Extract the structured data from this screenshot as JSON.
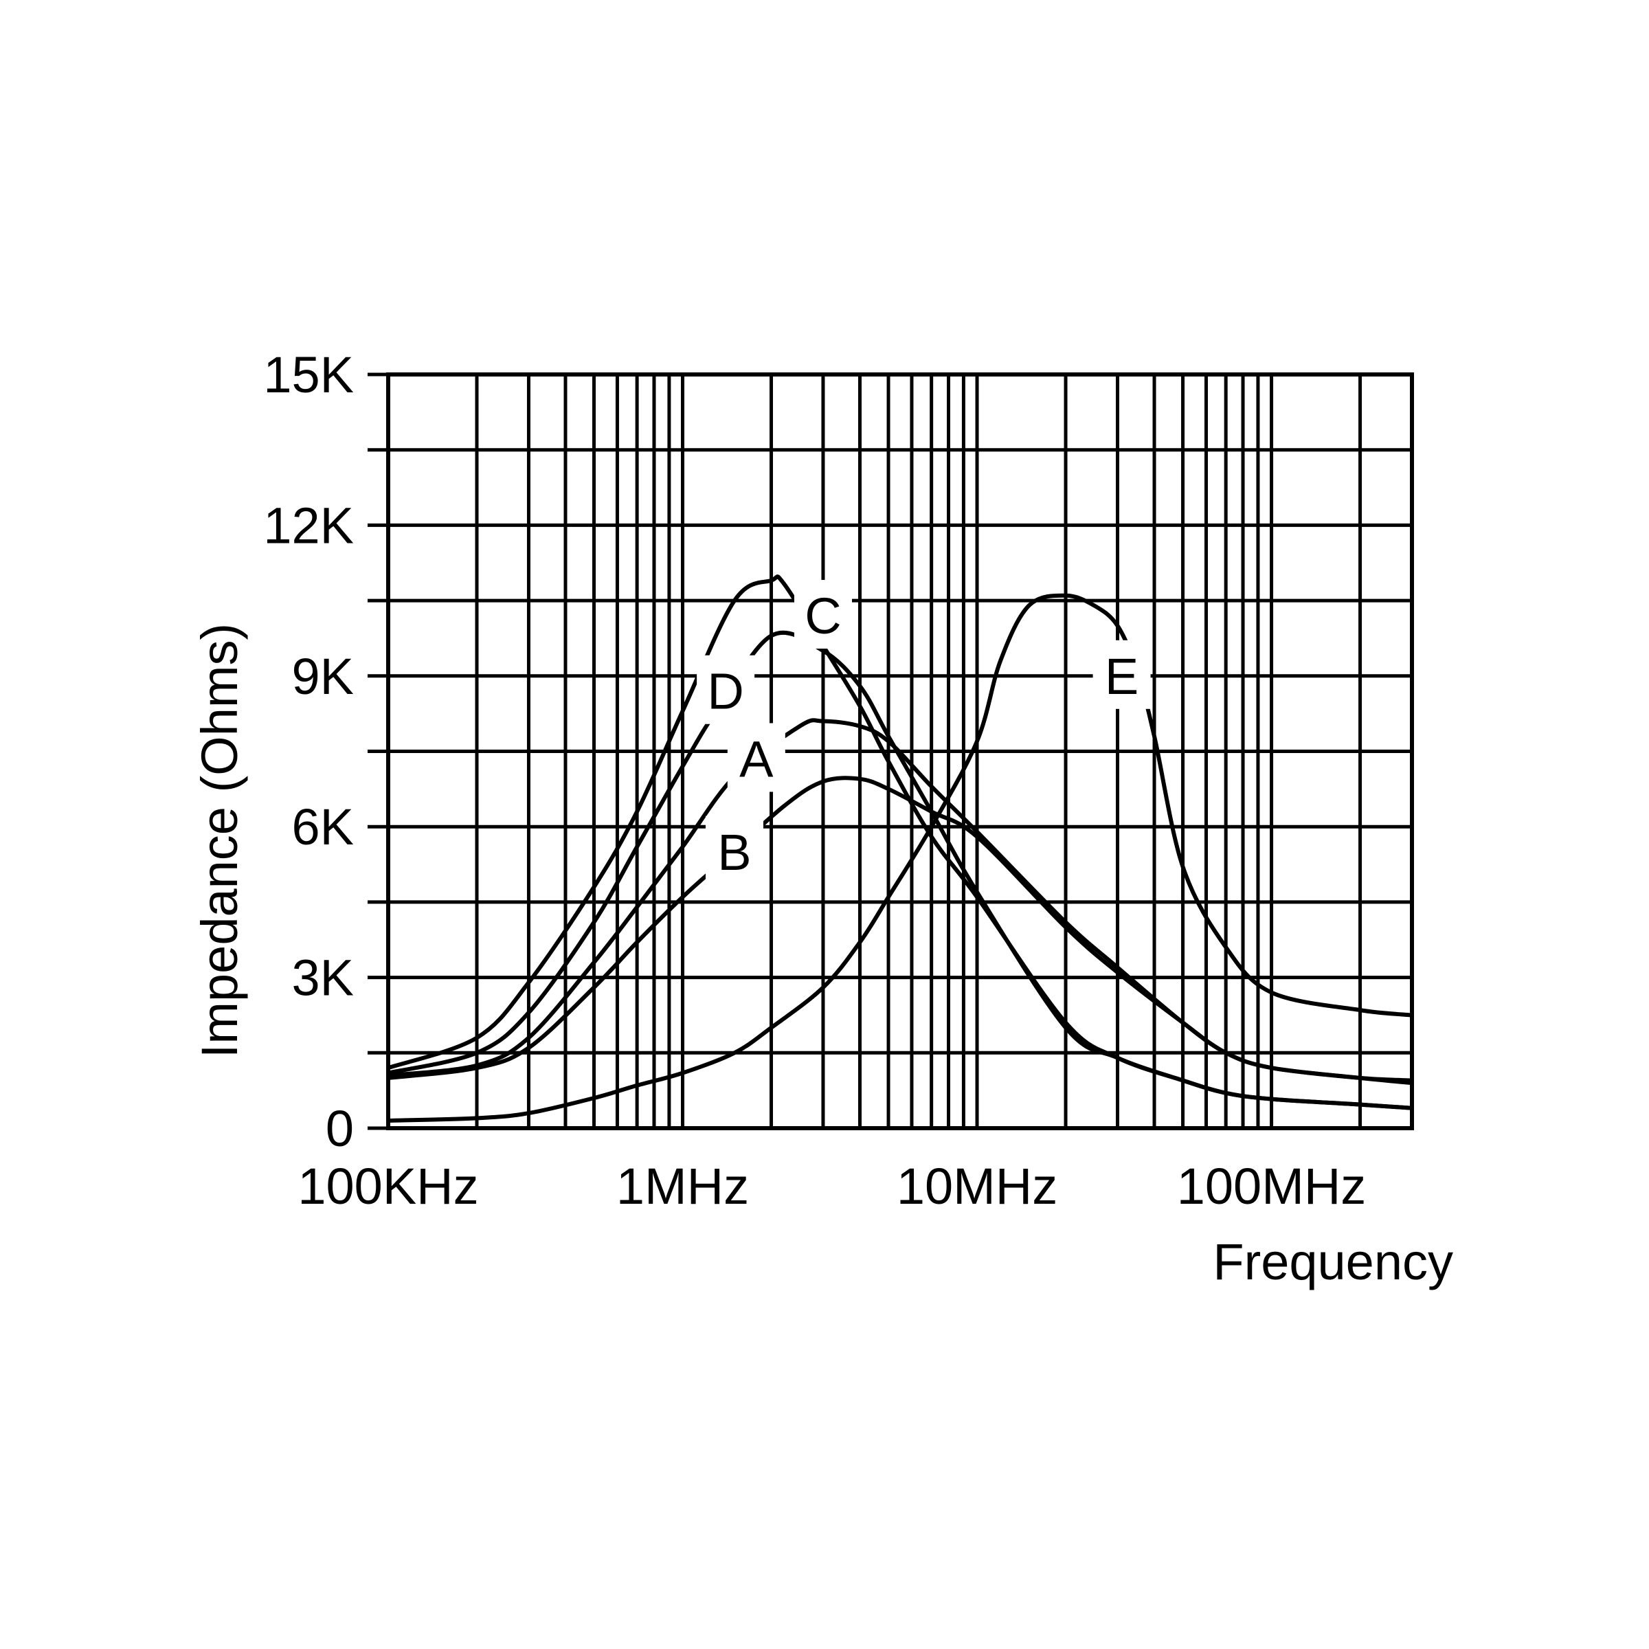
{
  "chart_data": {
    "type": "line",
    "title": "",
    "xlabel": "Frequency",
    "ylabel": "Impedance (Ohms)",
    "x_scale": "log",
    "x_unit": "Hz",
    "xlim": [
      100000,
      300000000
    ],
    "ylim": [
      0,
      15000
    ],
    "grid": true,
    "x_ticks": [
      {
        "value": 100000,
        "label": "100KHz"
      },
      {
        "value": 1000000,
        "label": "1MHz"
      },
      {
        "value": 10000000,
        "label": "10MHz"
      },
      {
        "value": 100000000,
        "label": "100MHz"
      }
    ],
    "y_ticks": [
      {
        "value": 0,
        "label": "0"
      },
      {
        "value": 3000,
        "label": "3K"
      },
      {
        "value": 6000,
        "label": "6K"
      },
      {
        "value": 9000,
        "label": "9K"
      },
      {
        "value": 12000,
        "label": "12K"
      },
      {
        "value": 15000,
        "label": "15K"
      }
    ],
    "series": [
      {
        "name": "A",
        "x": [
          100000,
          200000,
          300000,
          500000,
          700000,
          1000000,
          1500000,
          2500000,
          3000000,
          4000000,
          5000000,
          7000000,
          10000000,
          20000000,
          30000000,
          50000000,
          70000000,
          100000000,
          200000000,
          300000000
        ],
        "y": [
          1050,
          1250,
          1800,
          3300,
          4400,
          5600,
          7000,
          8000,
          8100,
          8000,
          7700,
          6800,
          5900,
          4100,
          3200,
          2100,
          1500,
          1200,
          1000,
          950
        ]
      },
      {
        "name": "B",
        "x": [
          100000,
          200000,
          300000,
          500000,
          700000,
          1000000,
          1300000,
          2200000,
          3000000,
          4000000,
          5000000,
          7000000,
          10000000,
          20000000,
          30000000,
          50000000,
          70000000,
          100000000,
          200000000,
          300000000
        ],
        "y": [
          1000,
          1200,
          1600,
          2800,
          3700,
          4600,
          5200,
          6400,
          6900,
          6950,
          6750,
          6300,
          5800,
          4000,
          3100,
          2100,
          1500,
          1200,
          1000,
          900
        ]
      },
      {
        "name": "C",
        "x": [
          100000,
          200000,
          300000,
          500000,
          700000,
          1000000,
          1500000,
          2000000,
          2200000,
          3000000,
          4000000,
          5000000,
          7000000,
          10000000,
          20000000,
          30000000,
          50000000,
          70000000,
          100000000,
          200000000,
          300000000
        ],
        "y": [
          1200,
          1800,
          2900,
          4800,
          6300,
          8300,
          10500,
          10900,
          10850,
          9600,
          8400,
          7300,
          5800,
          4600,
          2100,
          1400,
          950,
          700,
          580,
          470,
          400
        ]
      },
      {
        "name": "D",
        "x": [
          100000,
          200000,
          300000,
          500000,
          700000,
          1000000,
          1300000,
          2000000,
          3000000,
          4000000,
          5000000,
          7000000,
          10000000,
          20000000,
          30000000,
          50000000,
          70000000,
          100000000,
          200000000,
          300000000
        ],
        "y": [
          1100,
          1500,
          2300,
          4100,
          5600,
          7200,
          8300,
          9800,
          9500,
          8800,
          7800,
          6300,
          4700,
          2000,
          1400,
          950,
          700,
          580,
          470,
          400
        ]
      },
      {
        "name": "E",
        "x": [
          100000,
          200000,
          300000,
          500000,
          700000,
          1000000,
          1500000,
          2000000,
          3000000,
          4000000,
          5000000,
          7000000,
          10000000,
          12000000,
          15000000,
          20000000,
          25000000,
          30000000,
          35000000,
          40000000,
          50000000,
          70000000,
          100000000,
          200000000,
          300000000
        ],
        "y": [
          150,
          200,
          300,
          600,
          850,
          1100,
          1500,
          2000,
          2800,
          3700,
          4600,
          6000,
          7700,
          9300,
          10400,
          10600,
          10400,
          10000,
          9100,
          7800,
          5200,
          3600,
          2700,
          2350,
          2250
        ]
      }
    ],
    "series_label_positions": [
      {
        "name": "A",
        "x": 1780000,
        "y": 7350
      },
      {
        "name": "B",
        "x": 1500000,
        "y": 5500
      },
      {
        "name": "C",
        "x": 3000000,
        "y": 10200
      },
      {
        "name": "D",
        "x": 1400000,
        "y": 8700
      },
      {
        "name": "E",
        "x": 31000000,
        "y": 9000
      }
    ]
  }
}
